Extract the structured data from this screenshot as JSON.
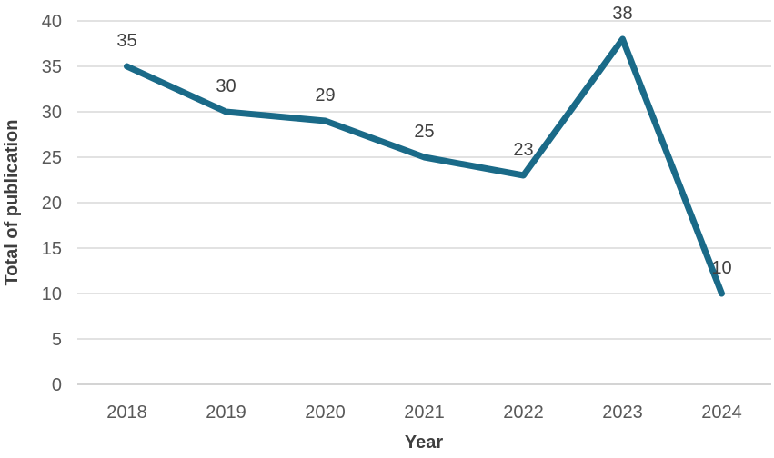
{
  "chart_data": {
    "type": "line",
    "categories": [
      "2018",
      "2019",
      "2020",
      "2021",
      "2022",
      "2023",
      "2024"
    ],
    "series": [
      {
        "name": "Total of publication",
        "values": [
          35,
          30,
          29,
          25,
          23,
          38,
          10
        ]
      }
    ],
    "data_labels": [
      "35",
      "30",
      "29",
      "25",
      "23",
      "38",
      "10"
    ],
    "xlabel": "Year",
    "ylabel": "Total of publication",
    "ylim": [
      0,
      40
    ],
    "ytick_interval": 5,
    "ytick_labels": [
      "0",
      "5",
      "10",
      "15",
      "20",
      "25",
      "30",
      "35",
      "40"
    ],
    "grid": "horizontal",
    "legend": "none",
    "colors": {
      "line": "#1a6a88",
      "gridline": "#d9d9d9",
      "axis_line": "#c6c6c6",
      "tick_label": "#595959",
      "data_label": "#404040",
      "axis_title": "#3f3f3f",
      "background": "#ffffff"
    }
  }
}
